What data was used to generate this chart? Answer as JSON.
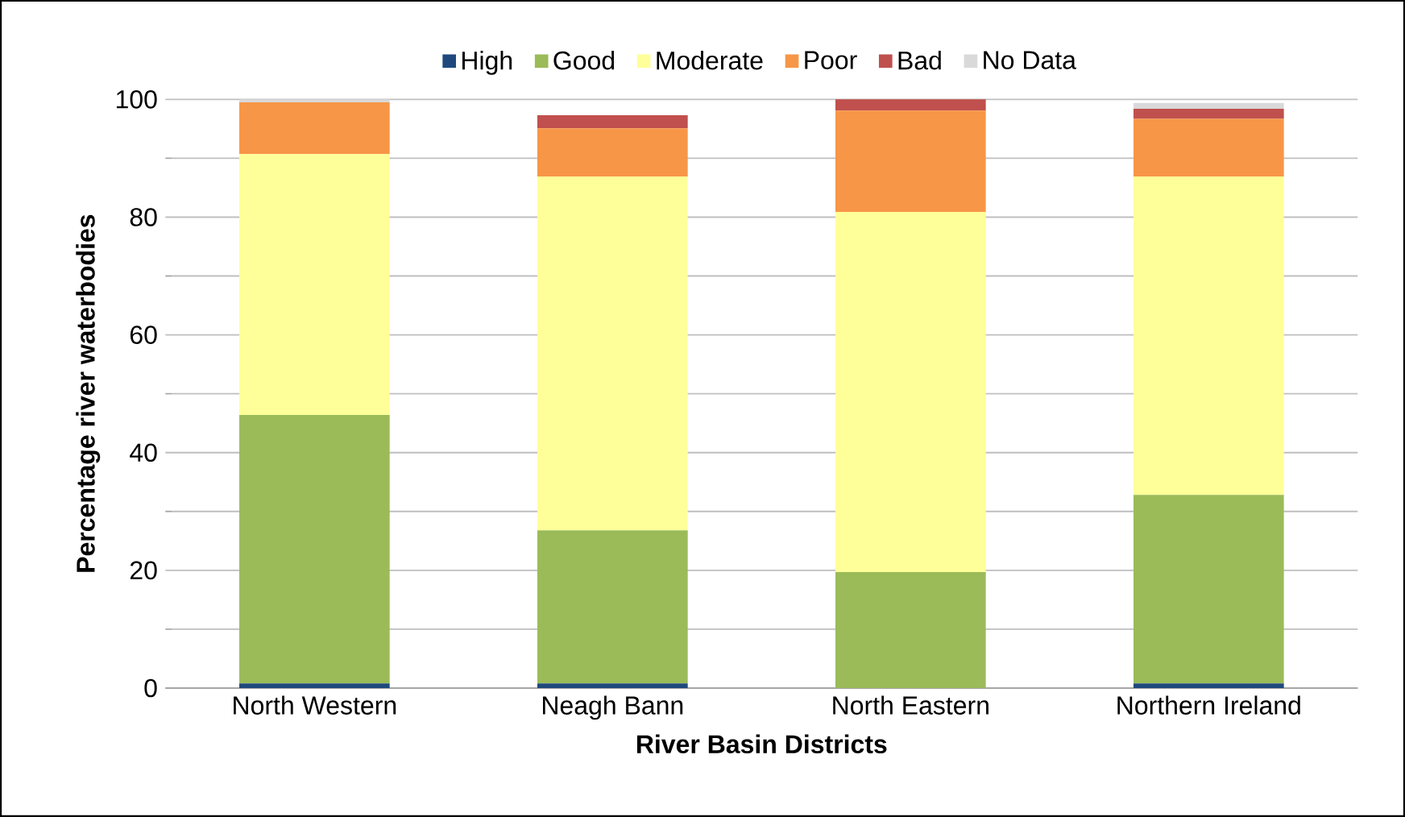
{
  "chart_data": {
    "type": "bar",
    "stacked": true,
    "xlabel": "River Basin Districts",
    "ylabel": "Percentage river waterbodies",
    "categories": [
      "North Western",
      "Neagh Bann",
      "North Eastern",
      "Northern Ireland"
    ],
    "series": [
      {
        "name": "High",
        "color": "#1f497d",
        "values": [
          0.8,
          0.8,
          0,
          0.8
        ]
      },
      {
        "name": "Good",
        "color": "#9bbb59",
        "values": [
          45.6,
          26,
          19.7,
          32
        ]
      },
      {
        "name": "Moderate",
        "color": "#ffff99",
        "values": [
          44.3,
          60.1,
          61.2,
          54.1
        ]
      },
      {
        "name": "Poor",
        "color": "#f79646",
        "values": [
          8.8,
          8.2,
          17.2,
          9.8
        ]
      },
      {
        "name": "Bad",
        "color": "#c0504d",
        "values": [
          0,
          2.2,
          1.9,
          1.7
        ]
      },
      {
        "name": "No Data",
        "color": "#d9d9d9",
        "values": [
          0.5,
          0,
          0,
          1
        ]
      }
    ],
    "ylim": [
      0,
      100
    ],
    "yticks": [
      0,
      20,
      40,
      60,
      80,
      100
    ],
    "grid": "y",
    "legend": "top"
  }
}
